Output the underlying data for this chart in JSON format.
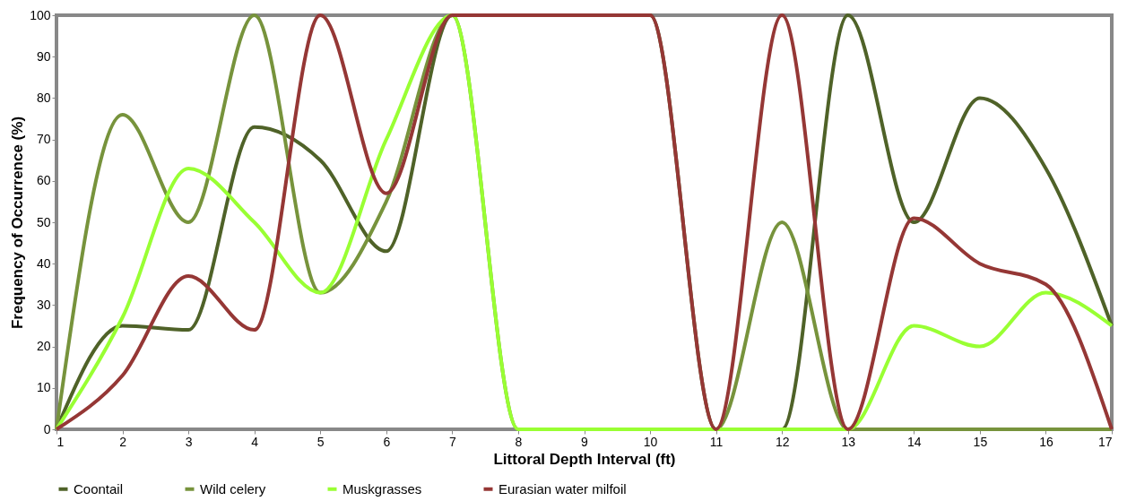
{
  "chart_data": {
    "type": "line",
    "xlabel": "Littoral Depth Interval (ft)",
    "ylabel": "Frequency of Occurrence (%)",
    "x": [
      1,
      2,
      3,
      4,
      5,
      6,
      7,
      8,
      9,
      10,
      11,
      12,
      13,
      14,
      15,
      16,
      17
    ],
    "series": [
      {
        "name": "Coontail",
        "color": "#4f6228",
        "values": [
          0,
          25,
          24,
          73,
          65,
          43,
          100,
          100,
          100,
          100,
          0,
          0,
          100,
          50,
          80,
          63,
          25
        ]
      },
      {
        "name": "Wild celery",
        "color": "#77933c",
        "values": [
          0,
          76,
          50,
          100,
          33,
          55,
          100,
          0,
          0,
          0,
          0,
          50,
          0,
          0,
          0,
          0,
          0
        ]
      },
      {
        "name": "Muskgrasses",
        "color": "#99ff33",
        "values": [
          0,
          27,
          63,
          50,
          33,
          70,
          100,
          0,
          0,
          0,
          0,
          0,
          0,
          25,
          20,
          33,
          25
        ]
      },
      {
        "name": "Eurasian water milfoil",
        "color": "#953735",
        "values": [
          0,
          13,
          37,
          24,
          100,
          57,
          100,
          100,
          100,
          100,
          0,
          100,
          0,
          51,
          40,
          35,
          0
        ]
      }
    ],
    "xlim": [
      1,
      17
    ],
    "xticks": [
      1,
      2,
      3,
      4,
      5,
      6,
      7,
      8,
      9,
      10,
      11,
      12,
      13,
      14,
      15,
      16,
      17
    ],
    "ylim": [
      0,
      100
    ],
    "yticks": [
      0,
      10,
      20,
      30,
      40,
      50,
      60,
      70,
      80,
      90,
      100
    ],
    "grid": false,
    "legend": "bottom",
    "marker": "none",
    "line_style": "solid"
  }
}
